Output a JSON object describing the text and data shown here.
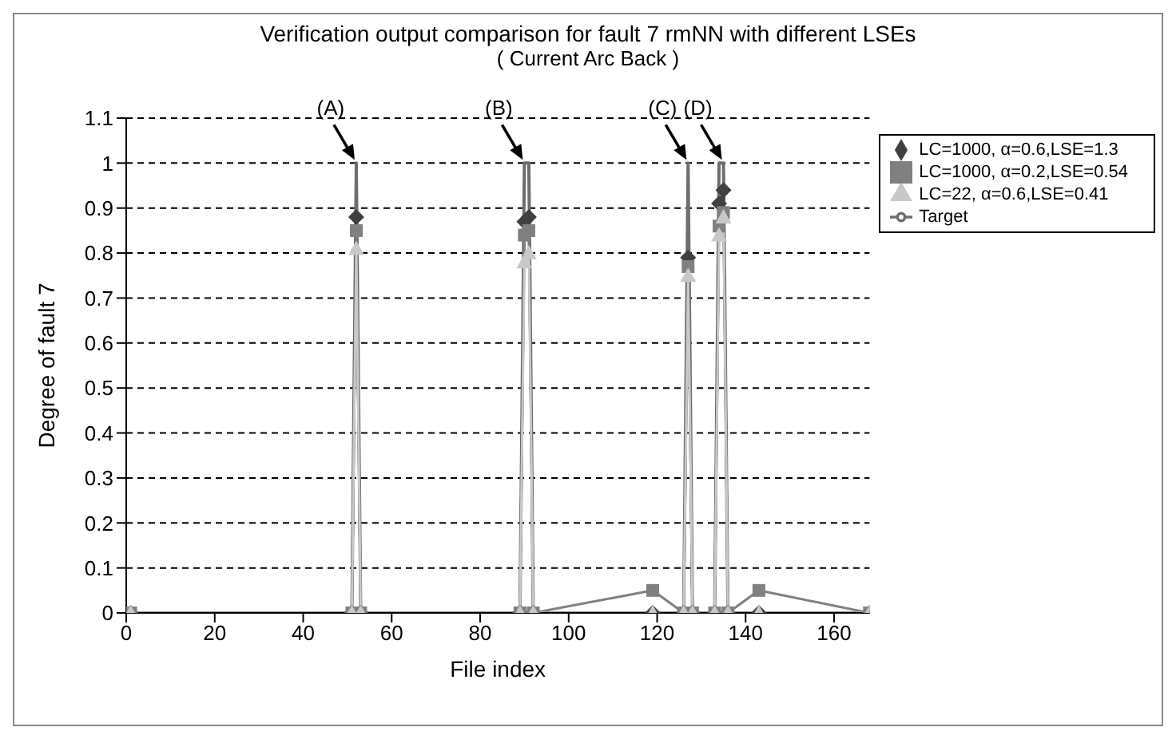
{
  "chart_data": {
    "type": "line",
    "title": "Verification output comparison for fault 7 rmNN with different LSEs",
    "subtitle": "( Current Arc Back )",
    "xlabel": "File index",
    "ylabel": "Degree of fault 7",
    "xlim": [
      0,
      168
    ],
    "xticks": [
      0,
      20,
      40,
      60,
      80,
      100,
      120,
      140,
      160
    ],
    "ylim": [
      0,
      1.1
    ],
    "yticks": [
      0,
      0.1,
      0.2,
      0.3,
      0.4,
      0.5,
      0.6,
      0.7,
      0.8,
      0.9,
      1,
      1.1
    ],
    "grid": "y",
    "legend": "right",
    "series": [
      {
        "name": "LC=1000, α=0.6,LSE=1.3",
        "color": "#404040",
        "marker": "diamond",
        "x": [
          1,
          51,
          52,
          53,
          89,
          90,
          91,
          92,
          119,
          126,
          127,
          128,
          133,
          134,
          135,
          136,
          143,
          168
        ],
        "values": [
          0,
          0,
          0.88,
          0,
          0,
          0.87,
          0.88,
          0,
          0,
          0,
          0.79,
          0,
          0,
          0.91,
          0.94,
          0,
          0,
          0
        ]
      },
      {
        "name": "LC=1000, α=0.2,LSE=0.54",
        "color": "#808080",
        "marker": "square",
        "x": [
          1,
          51,
          52,
          53,
          89,
          90,
          91,
          92,
          119,
          126,
          127,
          128,
          133,
          134,
          135,
          136,
          143,
          168
        ],
        "values": [
          0,
          0,
          0.85,
          0,
          0,
          0.84,
          0.85,
          0,
          0.05,
          0,
          0.77,
          0,
          0,
          0.86,
          0.89,
          0,
          0.05,
          0
        ]
      },
      {
        "name": "LC=22, α=0.6,LSE=0.41",
        "color": "#c8c8c8",
        "marker": "triangle",
        "x": [
          1,
          51,
          52,
          53,
          89,
          90,
          91,
          92,
          119,
          126,
          127,
          128,
          133,
          134,
          135,
          136,
          143,
          168
        ],
        "values": [
          0,
          0,
          0.81,
          0,
          0,
          0.78,
          0.8,
          0,
          0,
          0,
          0.75,
          0,
          0,
          0.84,
          0.88,
          0,
          0,
          0
        ]
      },
      {
        "name": "Target",
        "color": "#6e6e6e",
        "x": [
          1,
          51,
          52,
          53,
          89,
          90,
          91,
          92,
          126,
          127,
          128,
          133,
          134,
          135,
          136,
          168
        ],
        "values": [
          0,
          0,
          1,
          0,
          0,
          1,
          1,
          0,
          0,
          1,
          0,
          0,
          1,
          1,
          0,
          0
        ]
      }
    ],
    "annotations": [
      {
        "text": "(A)",
        "x": 52,
        "y": 1
      },
      {
        "text": "(B)",
        "x": 90,
        "y": 1
      },
      {
        "text": "(C)",
        "x": 127,
        "y": 1
      },
      {
        "text": "(D)",
        "x": 135,
        "y": 1
      }
    ]
  }
}
